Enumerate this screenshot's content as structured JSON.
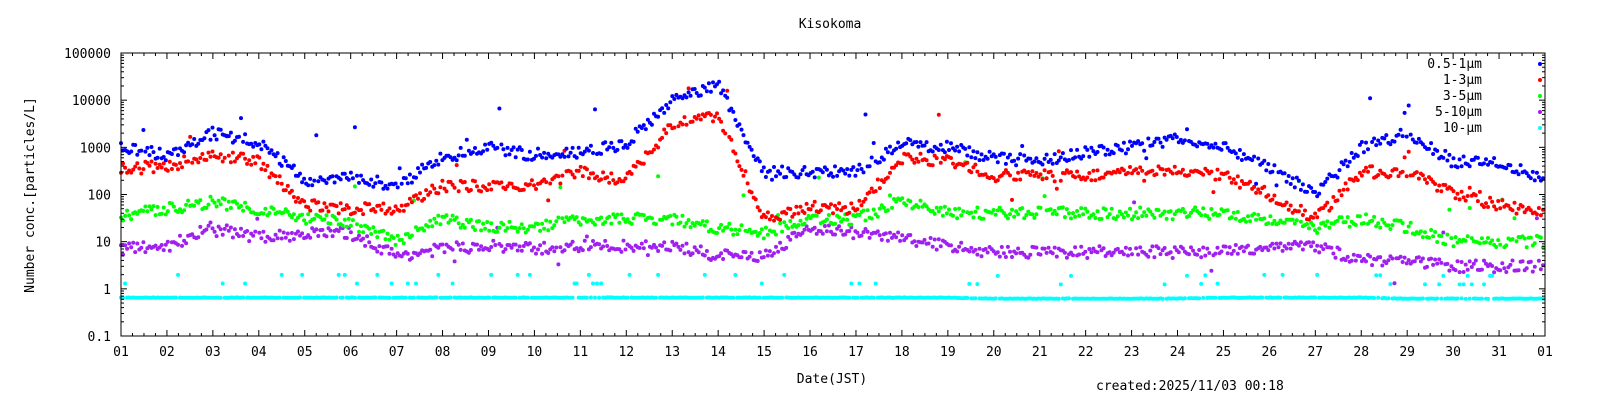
{
  "chart_data": {
    "type": "scatter",
    "title": "Kisokoma",
    "xlabel": "Date(JST)",
    "ylabel": "Number conc.[particles/L]",
    "yscale": "log",
    "ylim": [
      0.1,
      100000
    ],
    "ytick_labels": [
      "0.1",
      "1",
      "10",
      "100",
      "1000",
      "10000",
      "100000"
    ],
    "xlim": [
      1,
      32
    ],
    "xtick_labels": [
      "01",
      "02",
      "03",
      "04",
      "05",
      "06",
      "07",
      "08",
      "09",
      "10",
      "11",
      "12",
      "13",
      "14",
      "15",
      "16",
      "17",
      "18",
      "19",
      "20",
      "21",
      "22",
      "23",
      "24",
      "25",
      "26",
      "27",
      "28",
      "29",
      "30",
      "31",
      "01"
    ],
    "legend_position": "top-right",
    "day_x": [
      1,
      2,
      3,
      4,
      5,
      6,
      7,
      8,
      9,
      10,
      11,
      12,
      13,
      14,
      15,
      16,
      17,
      18,
      19,
      20,
      21,
      22,
      23,
      24,
      25,
      26,
      27,
      28,
      29,
      30,
      31,
      32
    ],
    "series": [
      {
        "name": "0.5-1μm",
        "color": "#0000ff",
        "values": [
          1000,
          700,
          2000,
          1300,
          200,
          250,
          150,
          600,
          1000,
          700,
          800,
          1200,
          10000,
          20000,
          300,
          300,
          300,
          1200,
          1000,
          600,
          500,
          800,
          1000,
          1500,
          1000,
          400,
          100,
          1000,
          2000,
          500,
          500,
          200
        ]
      },
      {
        "name": "1-3μm",
        "color": "#ff0000",
        "values": [
          350,
          400,
          700,
          500,
          60,
          50,
          50,
          150,
          150,
          150,
          300,
          200,
          3000,
          5000,
          30,
          50,
          50,
          600,
          500,
          250,
          250,
          250,
          300,
          300,
          250,
          100,
          30,
          300,
          300,
          100,
          60,
          40
        ]
      },
      {
        "name": "3-5μm",
        "color": "#00ff00",
        "values": [
          35,
          50,
          70,
          50,
          30,
          25,
          10,
          30,
          20,
          20,
          30,
          30,
          30,
          20,
          15,
          30,
          30,
          70,
          40,
          40,
          40,
          40,
          40,
          40,
          40,
          30,
          20,
          30,
          20,
          10,
          10,
          10
        ]
      },
      {
        "name": "5-10μm",
        "color": "#a020f0",
        "values": [
          7,
          8,
          20,
          12,
          15,
          15,
          5,
          7,
          8,
          7,
          8,
          8,
          8,
          5,
          5,
          20,
          15,
          12,
          8,
          6,
          6,
          6,
          6,
          6,
          6,
          8,
          8,
          4,
          4,
          3,
          3,
          3
        ]
      },
      {
        "name": "10-μm",
        "color": "#00ffff",
        "values": [
          0.65,
          0.65,
          0.65,
          0.65,
          0.65,
          0.65,
          0.65,
          0.65,
          0.65,
          0.65,
          0.65,
          0.65,
          0.65,
          0.65,
          0.65,
          0.65,
          0.65,
          0.65,
          0.65,
          0.62,
          0.62,
          0.62,
          0.62,
          0.62,
          0.65,
          0.65,
          0.65,
          0.65,
          0.62,
          0.62,
          0.62,
          0.62
        ]
      }
    ],
    "footer": "created:2025/11/03 00:18"
  }
}
